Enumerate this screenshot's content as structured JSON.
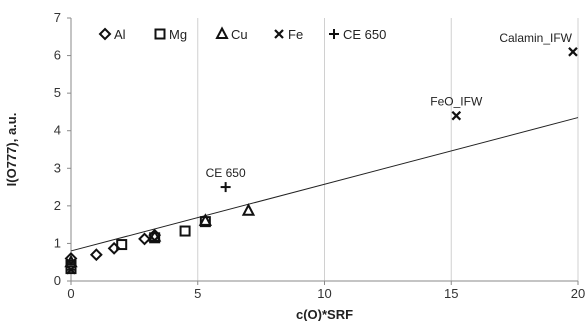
{
  "chart_data": {
    "type": "scatter",
    "xlabel": "c(O)*SRF",
    "ylabel": "I(O777), a.u.",
    "xlim": [
      0,
      20
    ],
    "ylim": [
      0,
      7
    ],
    "x_ticks": [
      0,
      5,
      10,
      15,
      20
    ],
    "y_ticks": [
      0,
      1,
      2,
      3,
      4,
      5,
      6,
      7
    ],
    "grid": "vertical major gridlines",
    "legend_position": "top-left, inside plot",
    "series": [
      {
        "name": "Al",
        "marker": "diamond",
        "points": [
          [
            0,
            0.6
          ],
          [
            1.0,
            0.7
          ],
          [
            1.7,
            0.87
          ],
          [
            2.9,
            1.12
          ],
          [
            3.3,
            1.22
          ]
        ]
      },
      {
        "name": "Mg",
        "marker": "square",
        "points": [
          [
            0,
            0.33
          ],
          [
            0,
            0.42
          ],
          [
            2.0,
            0.97
          ],
          [
            3.3,
            1.15
          ],
          [
            4.5,
            1.33
          ],
          [
            5.3,
            1.58
          ]
        ]
      },
      {
        "name": "Cu",
        "marker": "triangle",
        "points": [
          [
            0,
            0.5
          ],
          [
            3.3,
            1.18
          ],
          [
            5.3,
            1.6
          ],
          [
            7.0,
            1.87
          ]
        ]
      },
      {
        "name": "Fe",
        "marker": "x",
        "points": [
          [
            0,
            0.3
          ],
          [
            15.2,
            4.4
          ],
          [
            19.8,
            6.1
          ]
        ]
      },
      {
        "name": "CE 650",
        "marker": "plus",
        "points": [
          [
            6.1,
            2.5
          ]
        ]
      }
    ],
    "trendline": {
      "type": "linear",
      "from": [
        0,
        0.8
      ],
      "to": [
        20,
        4.35
      ]
    },
    "annotations": [
      {
        "text": "Calamin_IFW",
        "x": 19.8,
        "y": 6.1
      },
      {
        "text": "FeO_IFW",
        "x": 15.2,
        "y": 4.4
      },
      {
        "text": "CE 650",
        "x": 6.1,
        "y": 2.5
      }
    ]
  }
}
